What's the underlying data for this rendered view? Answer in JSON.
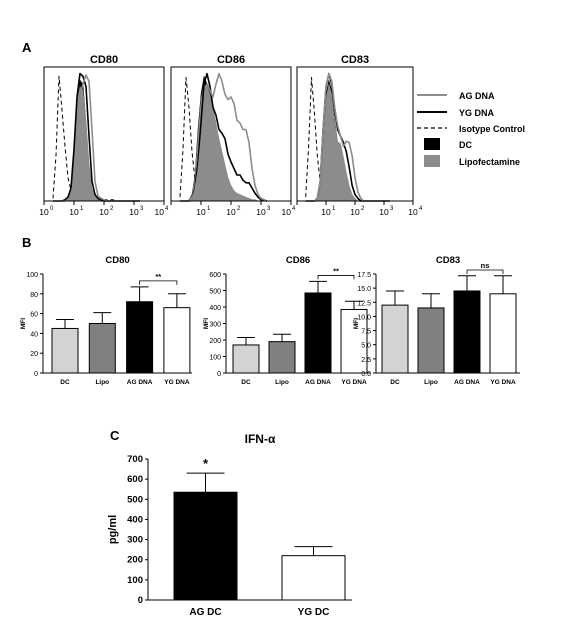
{
  "panel_labels": {
    "a": "A",
    "b": "B",
    "c": "C"
  },
  "legend": {
    "ag": "AG DNA",
    "yg": "YG DNA",
    "iso": "Isotype Control",
    "dc": "DC",
    "lipo": "Lipofectamine"
  },
  "colors": {
    "ag": "#8c8c8c",
    "yg": "#000000",
    "iso": "#000000",
    "dc": "#000000",
    "lipo": "#8c8c8c"
  },
  "chart_data": [
    {
      "type": "area",
      "panel": "A",
      "title": "CD80",
      "x_scale": "log",
      "x_ticks": [
        "10",
        "10",
        "10",
        "10",
        "10"
      ],
      "x_tick_exponents": [
        "0",
        "1",
        "2",
        "3",
        "4"
      ],
      "x": [
        0.3,
        0.4,
        0.5,
        0.6,
        0.7,
        0.8,
        0.9,
        1.0,
        1.1,
        1.2,
        1.3,
        1.4,
        1.5,
        1.6,
        1.7,
        1.8,
        1.9,
        2.0,
        2.1,
        2.2,
        2.3,
        2.4,
        2.5,
        2.6,
        2.7,
        2.8,
        2.9,
        3.0,
        3.2
      ],
      "series": [
        {
          "key": "iso",
          "values": [
            0.02,
            0.35,
            0.96,
            0.7,
            0.42,
            0.18,
            0.08,
            0.05,
            0.04,
            0.03,
            0.03,
            0.02,
            0.02,
            0.02,
            0.02,
            0.01,
            0.01,
            0.01,
            0.01,
            0.01,
            0.01,
            0.0,
            0.0,
            0.0,
            0.0,
            0.0,
            0.0,
            0.0,
            0.0
          ]
        },
        {
          "key": "dc",
          "values": [
            0.0,
            0.0,
            0.0,
            0.0,
            0.01,
            0.03,
            0.08,
            0.3,
            0.72,
            0.93,
            0.9,
            0.6,
            0.25,
            0.08,
            0.03,
            0.01,
            0.0,
            0.0,
            0.0,
            0.0,
            0.0,
            0.0,
            0.0,
            0.0,
            0.0,
            0.0,
            0.0,
            0.0,
            0.0
          ]
        },
        {
          "key": "lipo",
          "values": [
            0.0,
            0.0,
            0.0,
            0.0,
            0.01,
            0.03,
            0.1,
            0.35,
            0.75,
            0.88,
            0.85,
            0.62,
            0.3,
            0.1,
            0.04,
            0.01,
            0.0,
            0.0,
            0.0,
            0.0,
            0.0,
            0.0,
            0.0,
            0.0,
            0.0,
            0.0,
            0.0,
            0.0,
            0.0
          ]
        },
        {
          "key": "yg",
          "values": [
            0.0,
            0.0,
            0.0,
            0.0,
            0.01,
            0.03,
            0.1,
            0.4,
            0.8,
            0.98,
            0.96,
            0.88,
            0.5,
            0.15,
            0.05,
            0.02,
            0.01,
            0.0,
            0.0,
            0.0,
            0.0,
            0.0,
            0.0,
            0.0,
            0.0,
            0.0,
            0.0,
            0.0,
            0.0
          ]
        },
        {
          "key": "ag",
          "values": [
            0.0,
            0.0,
            0.0,
            0.0,
            0.0,
            0.01,
            0.04,
            0.15,
            0.5,
            0.82,
            0.9,
            0.97,
            0.92,
            0.55,
            0.15,
            0.04,
            0.02,
            0.01,
            0.0,
            0.0,
            0.0,
            0.0,
            0.0,
            0.0,
            0.0,
            0.0,
            0.0,
            0.0,
            0.0
          ]
        }
      ]
    },
    {
      "type": "area",
      "panel": "A",
      "title": "CD86",
      "x_scale": "log",
      "x_ticks": [
        "10",
        "10",
        "10",
        "10",
        "10"
      ],
      "x_tick_exponents": [
        "0",
        "1",
        "2",
        "3",
        "4"
      ],
      "x": [
        0.3,
        0.4,
        0.5,
        0.6,
        0.7,
        0.8,
        0.9,
        1.0,
        1.1,
        1.2,
        1.3,
        1.4,
        1.5,
        1.6,
        1.7,
        1.8,
        1.9,
        2.0,
        2.1,
        2.2,
        2.3,
        2.4,
        2.5,
        2.6,
        2.7,
        2.8,
        2.9,
        3.0,
        3.2
      ],
      "series": [
        {
          "key": "iso",
          "values": [
            0.03,
            0.4,
            0.95,
            0.72,
            0.38,
            0.16,
            0.07,
            0.05,
            0.04,
            0.03,
            0.03,
            0.02,
            0.02,
            0.02,
            0.02,
            0.01,
            0.01,
            0.01,
            0.01,
            0.01,
            0.01,
            0.0,
            0.0,
            0.0,
            0.0,
            0.0,
            0.0,
            0.0,
            0.0
          ]
        },
        {
          "key": "dc",
          "values": [
            0.0,
            0.0,
            0.0,
            0.01,
            0.05,
            0.2,
            0.55,
            0.82,
            0.96,
            0.9,
            0.86,
            0.7,
            0.55,
            0.42,
            0.3,
            0.18,
            0.1,
            0.07,
            0.06,
            0.05,
            0.04,
            0.03,
            0.02,
            0.02,
            0.01,
            0.01,
            0.0,
            0.0,
            0.0
          ]
        },
        {
          "key": "lipo",
          "values": [
            0.0,
            0.0,
            0.0,
            0.01,
            0.04,
            0.18,
            0.5,
            0.78,
            0.9,
            0.88,
            0.82,
            0.72,
            0.6,
            0.48,
            0.38,
            0.28,
            0.18,
            0.12,
            0.08,
            0.06,
            0.05,
            0.04,
            0.03,
            0.02,
            0.01,
            0.01,
            0.0,
            0.0,
            0.0
          ]
        },
        {
          "key": "yg",
          "values": [
            0.0,
            0.0,
            0.0,
            0.0,
            0.02,
            0.1,
            0.3,
            0.6,
            0.9,
            0.98,
            0.88,
            0.72,
            0.66,
            0.55,
            0.52,
            0.48,
            0.36,
            0.3,
            0.25,
            0.2,
            0.2,
            0.16,
            0.14,
            0.14,
            0.1,
            0.06,
            0.03,
            0.01,
            0.0
          ]
        },
        {
          "key": "ag",
          "values": [
            0.0,
            0.0,
            0.0,
            0.0,
            0.02,
            0.08,
            0.22,
            0.45,
            0.72,
            0.9,
            0.85,
            0.8,
            0.9,
            0.98,
            0.92,
            0.82,
            0.78,
            0.8,
            0.75,
            0.62,
            0.6,
            0.55,
            0.55,
            0.45,
            0.25,
            0.12,
            0.05,
            0.02,
            0.0
          ]
        }
      ]
    },
    {
      "type": "area",
      "panel": "A",
      "title": "CD83",
      "x_scale": "log",
      "x_ticks": [
        "10",
        "10",
        "10",
        "10",
        "10"
      ],
      "x_tick_exponents": [
        "0",
        "1",
        "2",
        "3",
        "4"
      ],
      "x": [
        0.3,
        0.4,
        0.5,
        0.6,
        0.7,
        0.8,
        0.9,
        1.0,
        1.1,
        1.2,
        1.3,
        1.4,
        1.5,
        1.6,
        1.7,
        1.8,
        1.9,
        2.0,
        2.1,
        2.2,
        2.3,
        2.4,
        2.5,
        2.6,
        2.7,
        2.8,
        2.9,
        3.0,
        3.2
      ],
      "series": [
        {
          "key": "iso",
          "values": [
            0.03,
            0.42,
            0.95,
            0.68,
            0.35,
            0.15,
            0.07,
            0.04,
            0.03,
            0.03,
            0.02,
            0.02,
            0.02,
            0.02,
            0.01,
            0.01,
            0.01,
            0.01,
            0.0,
            0.0,
            0.0,
            0.0,
            0.0,
            0.0,
            0.0,
            0.0,
            0.0,
            0.0,
            0.0
          ]
        },
        {
          "key": "dc",
          "values": [
            0.0,
            0.0,
            0.0,
            0.0,
            0.02,
            0.15,
            0.52,
            0.82,
            0.93,
            0.85,
            0.62,
            0.45,
            0.42,
            0.3,
            0.2,
            0.1,
            0.04,
            0.01,
            0.0,
            0.0,
            0.0,
            0.0,
            0.0,
            0.0,
            0.0,
            0.0,
            0.0,
            0.0,
            0.0
          ]
        },
        {
          "key": "lipo",
          "values": [
            0.0,
            0.0,
            0.0,
            0.0,
            0.02,
            0.14,
            0.5,
            0.78,
            0.9,
            0.82,
            0.6,
            0.46,
            0.44,
            0.34,
            0.22,
            0.12,
            0.05,
            0.02,
            0.0,
            0.0,
            0.0,
            0.0,
            0.0,
            0.0,
            0.0,
            0.0,
            0.0,
            0.0,
            0.0
          ]
        },
        {
          "key": "yg",
          "values": [
            0.0,
            0.0,
            0.0,
            0.0,
            0.02,
            0.15,
            0.55,
            0.88,
            0.98,
            0.9,
            0.7,
            0.55,
            0.5,
            0.45,
            0.38,
            0.26,
            0.12,
            0.05,
            0.02,
            0.0,
            0.0,
            0.0,
            0.0,
            0.0,
            0.0,
            0.0,
            0.0,
            0.0,
            0.0
          ]
        },
        {
          "key": "ag",
          "values": [
            0.0,
            0.0,
            0.0,
            0.0,
            0.02,
            0.15,
            0.55,
            0.88,
            0.98,
            0.92,
            0.72,
            0.58,
            0.5,
            0.42,
            0.46,
            0.45,
            0.35,
            0.18,
            0.07,
            0.02,
            0.0,
            0.0,
            0.0,
            0.0,
            0.0,
            0.0,
            0.0,
            0.0,
            0.0
          ]
        }
      ]
    },
    {
      "type": "bar",
      "panel": "B",
      "title": "CD80",
      "ylabel": "MFI",
      "categories": [
        "DC",
        "Lipo",
        "AG DNA",
        "YG DNA"
      ],
      "values": [
        45,
        50,
        72,
        66
      ],
      "errors": [
        9,
        11,
        15,
        14
      ],
      "ylim": [
        0,
        100
      ],
      "yticks": [
        0,
        20,
        40,
        60,
        80,
        100
      ],
      "ytick_labels": [
        "0",
        "20",
        "40",
        "60",
        "80",
        "100"
      ],
      "fills": [
        "#d3d3d3",
        "#808080",
        "#000000",
        "#ffffff"
      ],
      "significance": {
        "from": 2,
        "to": 3,
        "label": "**"
      }
    },
    {
      "type": "bar",
      "panel": "B",
      "title": "CD86",
      "ylabel": "MFI",
      "categories": [
        "DC",
        "Lipo",
        "AG DNA",
        "YG DNA"
      ],
      "values": [
        170,
        190,
        485,
        385
      ],
      "errors": [
        45,
        45,
        70,
        50
      ],
      "ylim": [
        0,
        600
      ],
      "yticks": [
        0,
        100,
        200,
        300,
        400,
        500,
        600
      ],
      "ytick_labels": [
        "0",
        "100",
        "200",
        "300",
        "400",
        "500",
        "600"
      ],
      "fills": [
        "#d3d3d3",
        "#808080",
        "#000000",
        "#ffffff"
      ],
      "significance": {
        "from": 2,
        "to": 3,
        "label": "**"
      }
    },
    {
      "type": "bar",
      "panel": "B",
      "title": "CD83",
      "ylabel": "MFI",
      "categories": [
        "DC",
        "Lipo",
        "AG DNA",
        "YG DNA"
      ],
      "values": [
        12.0,
        11.5,
        14.5,
        14.0
      ],
      "errors": [
        2.5,
        2.5,
        2.7,
        3.2
      ],
      "ylim": [
        0,
        17.5
      ],
      "yticks": [
        0,
        2.5,
        5.0,
        7.5,
        10.0,
        12.5,
        15.0,
        17.5
      ],
      "ytick_labels": [
        "0.0",
        "2.5",
        "5.0",
        "7.5",
        "10.0",
        "12.5",
        "15.0",
        "17.5"
      ],
      "fills": [
        "#d3d3d3",
        "#808080",
        "#000000",
        "#ffffff"
      ],
      "significance": {
        "from": 2,
        "to": 3,
        "label": "ns"
      }
    },
    {
      "type": "bar",
      "panel": "C",
      "title": "IFN-α",
      "ylabel": "pg/ml",
      "categories": [
        "AG DC",
        "YG DC"
      ],
      "values": [
        535,
        220
      ],
      "errors": [
        95,
        45
      ],
      "ylim": [
        0,
        700
      ],
      "yticks": [
        0,
        100,
        200,
        300,
        400,
        500,
        600,
        700
      ],
      "ytick_labels": [
        "0",
        "100",
        "200",
        "300",
        "400",
        "500",
        "600",
        "700"
      ],
      "fills": [
        "#000000",
        "#ffffff"
      ],
      "annotation": {
        "index": 0,
        "label": "*"
      }
    }
  ]
}
